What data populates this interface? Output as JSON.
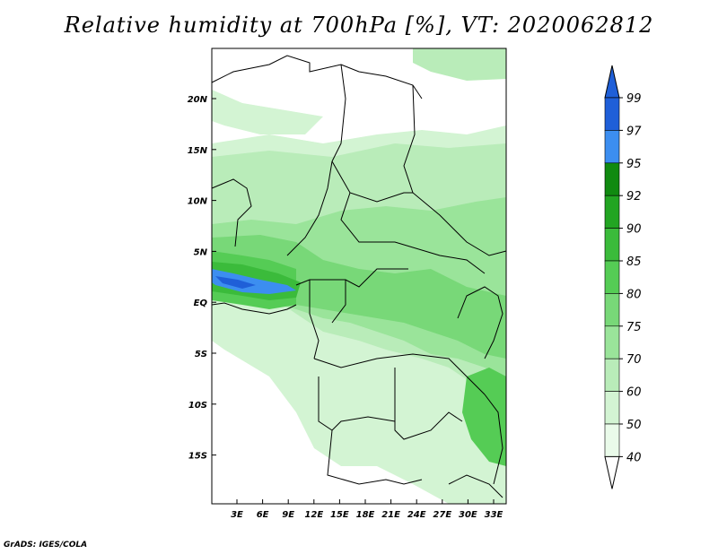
{
  "title": "Relative humidity at 700hPa [%], VT: 2020062812",
  "credit": "GrADS: IGES/COLA",
  "map": {
    "lon_labels": [
      "3E",
      "6E",
      "9E",
      "12E",
      "15E",
      "18E",
      "21E",
      "24E",
      "27E",
      "30E",
      "33E"
    ],
    "lat_labels": [
      "20N",
      "15N",
      "10N",
      "5N",
      "EQ",
      "5S",
      "10S",
      "15S"
    ]
  },
  "colorbar": {
    "labels": [
      "99",
      "97",
      "95",
      "92",
      "90",
      "85",
      "80",
      "75",
      "70",
      "60",
      "50",
      "40"
    ],
    "colors": [
      "#1f5fd8",
      "#3c8ef0",
      "#108a10",
      "#22a522",
      "#3bbb3b",
      "#55cc55",
      "#78d878",
      "#9ae49a",
      "#b9ecb9",
      "#d3f4d3",
      "#eafbea"
    ]
  },
  "field_colors": {
    "light": "#eafbea",
    "l50": "#d3f4d3",
    "l60": "#b9ecb9",
    "l70": "#9ae49a",
    "l75": "#78d878",
    "l80": "#55cc55",
    "l85": "#3bbb3b",
    "blue": "#3c8ef0",
    "deepblue": "#1f5fd8"
  }
}
